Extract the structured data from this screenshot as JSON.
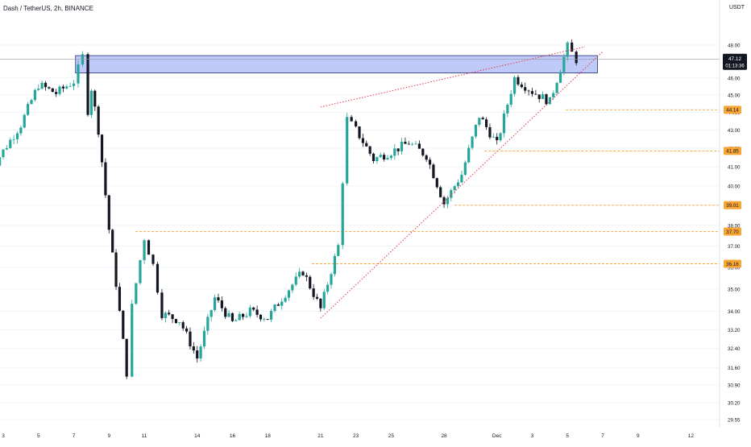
{
  "header": {
    "symbol": "Dash / TetherUS, 2h, BINANCE",
    "currency": "USDT"
  },
  "colors": {
    "up": "#26a69a",
    "down": "#131722",
    "zone_fill": "#aab8f5",
    "zone_border": "#1e2a7a",
    "trendline": "#e5394b",
    "level_line": "#f7a534",
    "level_badge": "#f7a534",
    "price_badge": "#131722",
    "grid": "#f0f3fa",
    "axis_text": "#131722"
  },
  "chart_data": {
    "type": "candlestick",
    "y_axis": {
      "scale": "log",
      "ticks": [
        "48.00",
        "46.00",
        "45.00",
        "44.00",
        "43.00",
        "42.00",
        "41.00",
        "40.00",
        "39.00",
        "38.00",
        "37.00",
        "36.00",
        "35.00",
        "34.00",
        "33.20",
        "32.40",
        "31.60",
        "30.90",
        "30.20",
        "29.55"
      ]
    },
    "x_axis": {
      "ticks": [
        "3",
        "5",
        "7",
        "9",
        "11",
        "14",
        "16",
        "18",
        "21",
        "23",
        "25",
        "28",
        "Dec",
        "3",
        "5",
        "7",
        "9",
        "12"
      ]
    },
    "current_price": {
      "value": "47.12",
      "countdown": "01:13:36"
    },
    "key_levels": [
      {
        "label": "44.14",
        "value": 44.14
      },
      {
        "label": "41.85",
        "value": 41.85
      },
      {
        "label": "39.01",
        "value": 39.01
      },
      {
        "label": "37.70",
        "value": 37.7
      },
      {
        "label": "36.16",
        "value": 36.16
      }
    ],
    "resistance_zone": {
      "low": 46.3,
      "high": 47.35
    },
    "trendlines": [
      {
        "from": {
          "date": "Nov 21",
          "price": 33.7
        },
        "to": {
          "date": "Dec 7",
          "price": 47.6
        }
      },
      {
        "from": {
          "date": "Nov 21",
          "price": 44.3
        },
        "to": {
          "date": "Dec 6",
          "price": 47.9
        }
      }
    ],
    "price_path": [
      {
        "date": "Nov 2",
        "price": 40.4
      },
      {
        "date": "Nov 4",
        "price": 43.3
      },
      {
        "date": "Nov 5",
        "price": 45.6
      },
      {
        "date": "Nov 6",
        "price": 45.1
      },
      {
        "date": "Nov 7",
        "price": 45.8
      },
      {
        "date": "Nov 7.5",
        "price": 47.3
      },
      {
        "date": "Nov 7.8",
        "price": 44.1
      },
      {
        "date": "Nov 8",
        "price": 45.4
      },
      {
        "date": "Nov 8.4",
        "price": 43.0
      },
      {
        "date": "Nov 9",
        "price": 37.8
      },
      {
        "date": "Nov 10",
        "price": 31.4
      },
      {
        "date": "Nov 10.3",
        "price": 34.2
      },
      {
        "date": "Nov 11",
        "price": 37.4
      },
      {
        "date": "Nov 11.5",
        "price": 36.1
      },
      {
        "date": "Nov 12",
        "price": 33.9
      },
      {
        "date": "Nov 13",
        "price": 33.6
      },
      {
        "date": "Nov 14",
        "price": 32.0
      },
      {
        "date": "Nov 15",
        "price": 34.6
      },
      {
        "date": "Nov 16",
        "price": 33.5
      },
      {
        "date": "Nov 17",
        "price": 34.0
      },
      {
        "date": "Nov 18",
        "price": 33.7
      },
      {
        "date": "Nov 19",
        "price": 34.8
      },
      {
        "date": "Nov 20",
        "price": 35.8
      },
      {
        "date": "Nov 21",
        "price": 34.1
      },
      {
        "date": "Nov 22",
        "price": 37.0
      },
      {
        "date": "Nov 22.5",
        "price": 43.6
      },
      {
        "date": "Nov 23",
        "price": 43.0
      },
      {
        "date": "Nov 24",
        "price": 41.4
      },
      {
        "date": "Nov 25",
        "price": 41.8
      },
      {
        "date": "Nov 26",
        "price": 42.3
      },
      {
        "date": "Nov 27",
        "price": 41.6
      },
      {
        "date": "Nov 28",
        "price": 39.1
      },
      {
        "date": "Nov 29",
        "price": 40.6
      },
      {
        "date": "Nov 30",
        "price": 43.8
      },
      {
        "date": "Dec 1",
        "price": 42.2
      },
      {
        "date": "Dec 2",
        "price": 46.0
      },
      {
        "date": "Dec 3",
        "price": 45.2
      },
      {
        "date": "Dec 4",
        "price": 44.6
      },
      {
        "date": "Dec 5",
        "price": 47.9
      },
      {
        "date": "Dec 5.5",
        "price": 47.1
      }
    ]
  }
}
